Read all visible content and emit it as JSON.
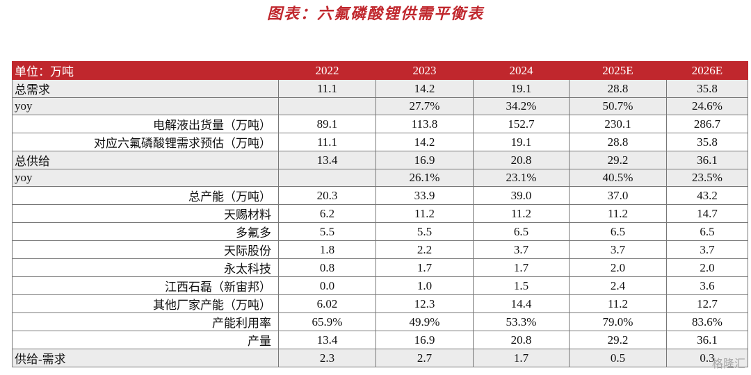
{
  "header": {
    "title": "图表：六氟磷酸锂供需平衡表"
  },
  "table": {
    "columns": [
      "单位：万吨",
      "2022",
      "2023",
      "2024",
      "2025E",
      "2026E"
    ],
    "rows": [
      [
        "总需求",
        "11.1",
        "14.2",
        "19.1",
        "28.8",
        "35.8"
      ],
      [
        "yoy",
        null,
        "27.7%",
        "34.2%",
        "50.7%",
        "24.6%"
      ],
      [
        "电解液出货量（万吨）",
        "89.1",
        "113.8",
        "152.7",
        "230.1",
        "286.7"
      ],
      [
        "对应六氟磷酸锂需求预估（万吨）",
        "11.1",
        "14.2",
        "19.1",
        "28.8",
        "35.8"
      ],
      [
        "总供给",
        "13.4",
        "16.9",
        "20.8",
        "29.2",
        "36.1"
      ],
      [
        "yoy",
        null,
        "26.1%",
        "23.1%",
        "40.5%",
        "23.5%"
      ],
      [
        "总产能（万吨）",
        "20.3",
        "33.9",
        "39.0",
        "37.0",
        "43.2"
      ],
      [
        "天赐材料",
        "6.2",
        "11.2",
        "11.2",
        "11.2",
        "14.7"
      ],
      [
        "多氟多",
        "5.5",
        "5.5",
        "6.5",
        "6.5",
        "6.5"
      ],
      [
        "天际股份",
        "1.8",
        "2.2",
        "3.7",
        "3.7",
        "3.7"
      ],
      [
        "永太科技",
        "0.8",
        "1.7",
        "1.7",
        "2.0",
        "2.0"
      ],
      [
        "江西石磊（新宙邦）",
        "0.0",
        "1.0",
        "1.5",
        "2.4",
        "3.6"
      ],
      [
        "其他厂家产能（万吨）",
        "6.02",
        "12.3",
        "14.4",
        "11.2",
        "12.7"
      ],
      [
        "产能利用率",
        "65.9%",
        "49.9%",
        "53.3%",
        "79.0%",
        "83.6%"
      ],
      [
        "产量",
        "13.4",
        "16.9",
        "20.8",
        "29.2",
        "36.1"
      ],
      [
        "供给-需求",
        "2.3",
        "2.7",
        "1.7",
        "0.5",
        "0.3"
      ]
    ]
  },
  "watermark": "格隆汇"
}
